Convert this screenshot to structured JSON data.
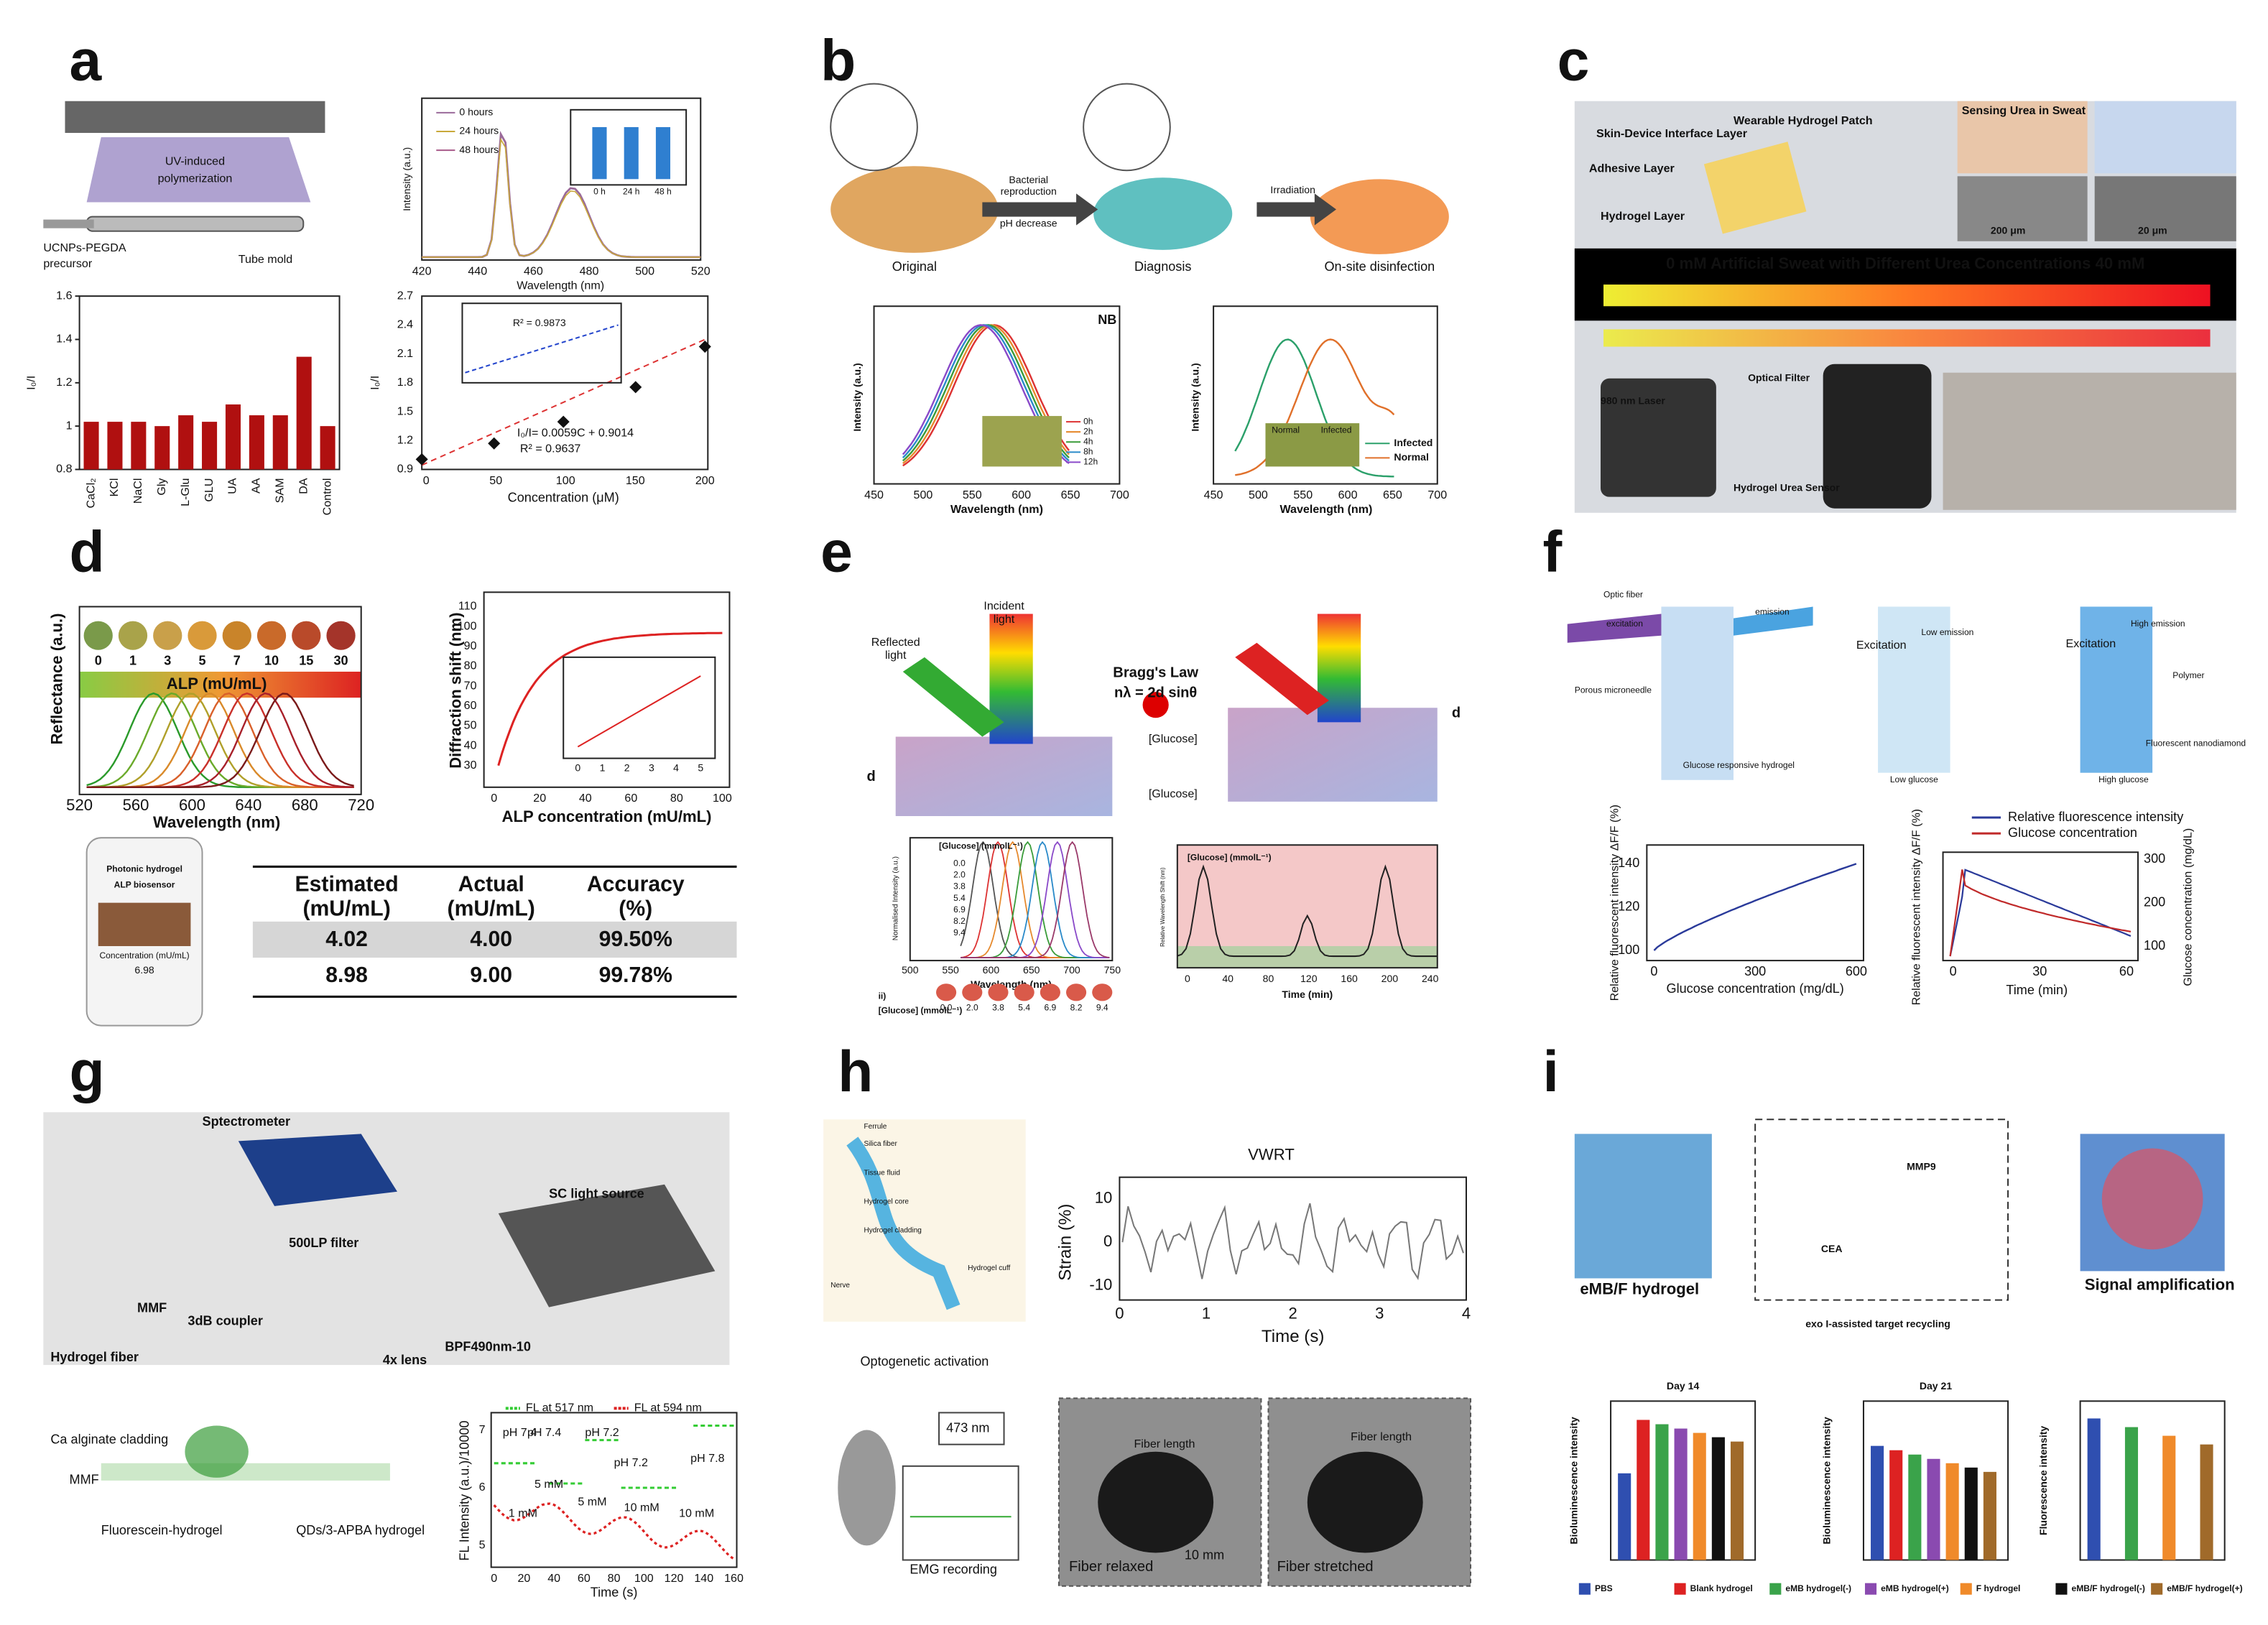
{
  "panels": {
    "a": {
      "label": "a",
      "device": [
        "UV-induced",
        "polymerization",
        "UCNPs-PEGDA",
        "precursor",
        "Tube mold"
      ],
      "spectrum": {
        "legend": [
          "0 hours",
          "24 hours",
          "48 hours"
        ],
        "xlabel": "Wavelength (nm)",
        "ylabel": "Intensity (a.u.)",
        "xticks": [
          "420",
          "440",
          "460",
          "480",
          "500",
          "520"
        ],
        "inset_x": [
          "0 h",
          "24 h",
          "48 h"
        ]
      },
      "bars": {
        "categories": [
          "CaCl₂",
          "KCl",
          "NaCl",
          "Gly",
          "L-Glu",
          "GLU",
          "UA",
          "AA",
          "SAM",
          "DA",
          "Control"
        ],
        "values": [
          1.02,
          1.02,
          1.02,
          1.0,
          1.05,
          1.02,
          1.1,
          1.05,
          1.05,
          1.32,
          1.0
        ],
        "ylim": [
          0.8,
          1.6
        ],
        "yticks": [
          0.8,
          1,
          1.2,
          1.4,
          1.6
        ],
        "ylabel": "I₀/I",
        "color": "#b01010"
      },
      "linear": {
        "xlabel": "Concentration (μM)",
        "ylabel": "I₀/I",
        "xticks": [
          "0",
          "50",
          "100",
          "150",
          "200"
        ],
        "yticks": [
          "0.9",
          "1.2",
          "1.5",
          "1.8",
          "2.1",
          "2.4",
          "2.7"
        ],
        "equation": "I₀/I= 0.0059C + 0.9014",
        "r2": "R² = 0.9637",
        "inset_r2": "R² = 0.9873"
      }
    },
    "b": {
      "label": "b",
      "steps": [
        "Original",
        "Bacterial",
        "reproduction",
        "pH decrease",
        "Diagnosis",
        "Irradiation",
        "On-site disinfection"
      ],
      "chart1": {
        "tag": "NB",
        "ylabel": "Intensity (a.u.)",
        "xlabel": "Wavelength (nm)",
        "xticks": [
          "450",
          "500",
          "550",
          "600",
          "650",
          "700"
        ],
        "legend": [
          "0h",
          "2h",
          "4h",
          "8h",
          "12h"
        ]
      },
      "chart2": {
        "ylabel": "Intensity (a.u.)",
        "xlabel": "Wavelength (nm)",
        "xticks": [
          "450",
          "500",
          "550",
          "600",
          "650",
          "700"
        ],
        "legend": [
          "Infected",
          "Normal"
        ],
        "inset": [
          "Normal",
          "Infected"
        ]
      }
    },
    "c": {
      "label": "c",
      "texts": [
        "Skin-Device Interface Layer",
        "Adhesive Layer",
        "Hydrogel Layer",
        "Wearable Hydrogel Patch",
        "Sensing Urea in Sweat",
        "200 μm",
        "20 μm",
        "0 mM  Artificial Sweat with Different Urea Concentrations  40 mM",
        "980 nm Laser",
        "Optical Filter",
        "Hydrogel Urea Sensor"
      ]
    },
    "d": {
      "label": "d",
      "scale": [
        "0",
        "1",
        "3",
        "5",
        "7",
        "10",
        "15",
        "30"
      ],
      "scale_title": "ALP  (mU/mL)",
      "spectrum": {
        "ylabel": "Reflectance (a.u.)",
        "xlabel": "Wavelength (nm)",
        "xticks": [
          "520",
          "560",
          "600",
          "640",
          "680",
          "720"
        ]
      },
      "curve": {
        "ylabel": "Diffraction shift (nm)",
        "xlabel": "ALP concentration (mU/mL)",
        "xticks": [
          "0",
          "20",
          "40",
          "60",
          "80",
          "100"
        ],
        "yticks": [
          "30",
          "40",
          "50",
          "60",
          "70",
          "80",
          "90",
          "100",
          "110"
        ],
        "inset_x": [
          "0",
          "1",
          "2",
          "3",
          "4",
          "5"
        ]
      },
      "phone": [
        "Photonic hydrogel",
        "ALP biosensor",
        "Concentration (mU/mL)",
        "6.98"
      ],
      "table": {
        "header": [
          [
            "Estimated",
            "(mU/mL)"
          ],
          [
            "Actual",
            "(mU/mL)"
          ],
          [
            "Accuracy",
            "(%)"
          ]
        ],
        "rows": [
          [
            "4.02",
            "4.00",
            "99.50%"
          ],
          [
            "8.98",
            "9.00",
            "99.78%"
          ]
        ]
      }
    },
    "e": {
      "label": "e",
      "texts": [
        "Incident",
        "light",
        "Reflected",
        "light",
        "Bragg's Law",
        "nλ = 2d sinθ",
        "[Glucose]",
        "[Glucose]",
        "d",
        "d"
      ],
      "chart1": {
        "legend_title": "[Glucose] (mmolL⁻¹)",
        "legend": [
          "0.0",
          "2.0",
          "3.8",
          "5.4",
          "6.9",
          "8.2",
          "9.4"
        ],
        "xlabel": "Wavelength (nm)",
        "ylabel": "Normalised Intensity (a.u.)",
        "xticks": [
          "500",
          "550",
          "600",
          "650",
          "700",
          "750"
        ],
        "row_label": "[Glucose] (mmolL⁻¹)",
        "prefix": "ii)"
      },
      "chart2": {
        "title": "[Glucose] (mmolL⁻¹)",
        "xlabel": "Time (min)",
        "ylabel": "Relative Wavelength Shift (nm)",
        "xticks": [
          "0",
          "40",
          "80",
          "120",
          "160",
          "200",
          "240"
        ]
      }
    },
    "f": {
      "label": "f",
      "texts": [
        "Optic fiber",
        "excitation",
        "emission",
        "Porous microneedle",
        "Glucose responsive hydrogel",
        "Excitation",
        "Low emission",
        "Excitation",
        "High emission",
        "Low glucose",
        "High glucose",
        "Polymer",
        "Fluorescent nanodiamond"
      ],
      "chart1": {
        "ylabel": "Relative fluorescent intensity ΔF/F (%)",
        "xlabel": "Glucose concentration (mg/dL)",
        "xticks": [
          "0",
          "300",
          "600"
        ],
        "yticks": [
          "100",
          "120",
          "140"
        ]
      },
      "chart2": {
        "legend": [
          "Relative fluorescence intensity",
          "Glucose concentration"
        ],
        "ylabel": "Relative fluorescent intensity ΔF/F (%)",
        "y2label": "Glucose concentration (mg/dL)",
        "xlabel": "Time (min)",
        "xticks": [
          "0",
          "30",
          "60"
        ],
        "y2ticks": [
          "100",
          "200",
          "300"
        ]
      }
    },
    "g": {
      "label": "g",
      "texts": [
        "Sptectrometer",
        "SC light source",
        "500LP filter",
        "MMF",
        "3dB coupler",
        "Hydrogel fiber",
        "4x lens",
        "BPF490nm-10",
        "Ca alginate cladding",
        "MMF",
        "Fluorescein-hydrogel",
        "QDs/3-APBA hydrogel"
      ],
      "chart": {
        "legend": [
          "FL at 517 nm",
          "FL at 594 nm"
        ],
        "ylabel": "FL Intensity (a.u.)/10000",
        "xlabel": "Time (s)",
        "xticks": [
          "0",
          "20",
          "40",
          "60",
          "80",
          "100",
          "120",
          "140",
          "160"
        ],
        "yticks": [
          "5",
          "6",
          "7"
        ],
        "notes": [
          "pH 7.4",
          "pH 7.4",
          "pH 7.2",
          "pH 7.2",
          "pH 7.8",
          "5 mM",
          "5 mM",
          "1 mM",
          "10 mM",
          "10 mM"
        ]
      }
    },
    "h": {
      "label": "h",
      "texts": [
        "Ferrule",
        "Silica fiber",
        "Tissue fluid",
        "Hydrogel core",
        "Hydrogel cladding",
        "Hydrogel cuff",
        "Nerve",
        "Optogenetic activation",
        "473 nm",
        "EMG recording"
      ],
      "chart": {
        "title": "VWRT",
        "ylabel": "Strain (%)",
        "xlabel": "Time (s)",
        "xticks": [
          "0",
          "1",
          "2",
          "3",
          "4"
        ],
        "yticks": [
          "-10",
          "0",
          "10"
        ]
      },
      "photos": [
        "Fiber relaxed",
        "Fiber stretched",
        "Fiber length",
        "Fiber length",
        "10 mm"
      ]
    },
    "i": {
      "label": "i",
      "texts": [
        "eMB/F hydrogel",
        "MMP9",
        "CEA",
        "exo I-assisted target recycling",
        "Signal amplification"
      ],
      "charts": [
        {
          "title": "Day 14",
          "ylabel": "Bioluminescence intensity"
        },
        {
          "title": "Day 21",
          "ylabel": "Bioluminescence intensity"
        },
        {
          "ylabel": "Fluorescence intensity"
        }
      ],
      "legend": [
        "PBS",
        "Blank hydrogel",
        "eMB hydrogel(-)",
        "eMB hydrogel(+)",
        "F hydrogel",
        "eMB/F hydrogel(-)",
        "eMB/F hydrogel(+)"
      ]
    }
  }
}
